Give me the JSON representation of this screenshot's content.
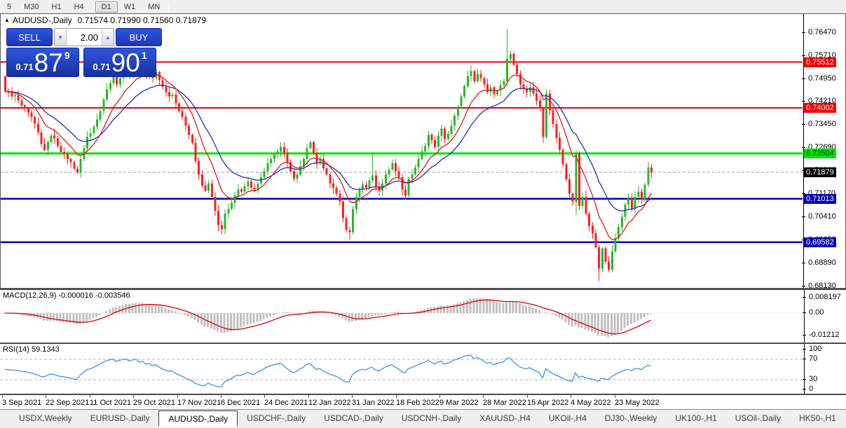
{
  "toolbar": {
    "timeframes": [
      {
        "label": "5",
        "active": false
      },
      {
        "label": "M30",
        "active": false
      },
      {
        "label": "H1",
        "active": false
      },
      {
        "label": "H4",
        "active": false
      },
      {
        "label": "D1",
        "active": true
      },
      {
        "label": "W1",
        "active": false
      },
      {
        "label": "MN",
        "active": false
      }
    ],
    "separators_after": [
      "H4",
      "MN"
    ]
  },
  "chart_header": {
    "collapse_icon": "▲",
    "symbol": "AUDUSD-,Daily",
    "ohlc": "0.71574 0.71990 0.71560 0.71879"
  },
  "trade_panel": {
    "sell_label": "SELL",
    "buy_label": "BUY",
    "volume": "2.00",
    "down_arrow": "▼",
    "up_arrow": "▲",
    "sell_price": {
      "prefix": "0.71",
      "big": "87",
      "sup": "9"
    },
    "buy_price": {
      "prefix": "0.71",
      "big": "90",
      "sup": "1"
    }
  },
  "chart_data": {
    "type": "candlestick",
    "symbol": "AUDUSD-,Daily",
    "price_axis_ticks": [
      "0.76470",
      "0.75710",
      "0.74950",
      "0.74210",
      "0.73450",
      "0.72690",
      "0.71930",
      "0.71170",
      "0.70410",
      "0.69650",
      "0.68890",
      "0.68130"
    ],
    "price_tags": [
      {
        "label": "0.75512",
        "price": 0.75512,
        "color": "red"
      },
      {
        "label": "0.74002",
        "price": 0.74002,
        "color": "red"
      },
      {
        "label": "0.72504",
        "price": 0.72504,
        "color": "green"
      },
      {
        "label": "0.71879",
        "price": 0.71879,
        "color": "black"
      },
      {
        "label": "0.71013",
        "price": 0.71013,
        "color": "blue"
      },
      {
        "label": "0.69582",
        "price": 0.69582,
        "color": "blue"
      }
    ],
    "hlines": [
      {
        "price": 0.75512,
        "color": "#ee0000",
        "width": 2,
        "dash": ""
      },
      {
        "price": 0.74002,
        "color": "#ee0000",
        "width": 2,
        "dash": ""
      },
      {
        "price": 0.72504,
        "color": "#00e400",
        "width": 3,
        "dash": ""
      },
      {
        "price": 0.71013,
        "color": "#0000bb",
        "width": 2.4,
        "dash": ""
      },
      {
        "price": 0.69582,
        "color": "#0000bb",
        "width": 2.4,
        "dash": ""
      },
      {
        "price": 0.71879,
        "color": "#999999",
        "width": 1,
        "dash": "4,3"
      }
    ],
    "closes": [
      0.7455,
      0.745,
      0.7438,
      0.7442,
      0.7425,
      0.7408,
      0.7398,
      0.7385,
      0.737,
      0.7348,
      0.732,
      0.7282,
      0.7262,
      0.7288,
      0.731,
      0.73,
      0.7275,
      0.7255,
      0.7248,
      0.7232,
      0.7222,
      0.72,
      0.7188,
      0.7232,
      0.7268,
      0.7305,
      0.7318,
      0.7338,
      0.7362,
      0.739,
      0.7428,
      0.7462,
      0.7482,
      0.7502,
      0.7478,
      0.7498,
      0.7518,
      0.7532,
      0.7512,
      0.7536,
      0.755,
      0.7522,
      0.7538,
      0.7508,
      0.7524,
      0.7498,
      0.7518,
      0.7492,
      0.747,
      0.7452,
      0.7438,
      0.7444,
      0.7415,
      0.739,
      0.7372,
      0.7342,
      0.7312,
      0.7285,
      0.7225,
      0.7182,
      0.7145,
      0.7128,
      0.7152,
      0.7108,
      0.7062,
      0.7015,
      0.7002,
      0.7052,
      0.7068,
      0.7088,
      0.7112,
      0.7132,
      0.7125,
      0.7142,
      0.7158,
      0.7138,
      0.7128,
      0.7152,
      0.7172,
      0.7192,
      0.7218,
      0.7232,
      0.7248,
      0.7258,
      0.7272,
      0.7252,
      0.7222,
      0.7192,
      0.7168,
      0.7182,
      0.7208,
      0.7232,
      0.7268,
      0.7288,
      0.7252,
      0.7218,
      0.7232,
      0.7202,
      0.7182,
      0.7152,
      0.7138,
      0.7118,
      0.7092,
      0.7038,
      0.6998,
      0.6992,
      0.7068,
      0.7108,
      0.7132,
      0.7148,
      0.7138,
      0.7162,
      0.7178,
      0.7142,
      0.7128,
      0.7152,
      0.7182,
      0.7198,
      0.7218,
      0.7192,
      0.7172,
      0.7132,
      0.7112,
      0.7168,
      0.7182,
      0.7205,
      0.7232,
      0.7258,
      0.7275,
      0.7312,
      0.7295,
      0.7272,
      0.7308,
      0.7332,
      0.7298,
      0.7315,
      0.7342,
      0.7375,
      0.7405,
      0.7438,
      0.7472,
      0.7505,
      0.7522,
      0.7488,
      0.7512,
      0.7498,
      0.7478,
      0.7452,
      0.7468,
      0.7445,
      0.7458,
      0.7475,
      0.7488,
      0.7562,
      0.7578,
      0.7542,
      0.7512,
      0.7478,
      0.7462,
      0.7452,
      0.7468,
      0.7448,
      0.7425,
      0.7398,
      0.7305,
      0.7448,
      0.7392,
      0.7348,
      0.7302,
      0.7262,
      0.7215,
      0.7165,
      0.7118,
      0.7092,
      0.7252,
      0.7078,
      0.7108,
      0.7052,
      0.7012,
      0.6988,
      0.6942,
      0.6872,
      0.6938,
      0.6895,
      0.6868,
      0.6928,
      0.6972,
      0.7008,
      0.7042,
      0.7082,
      0.7102,
      0.7068,
      0.7108,
      0.7125,
      0.7098,
      0.7148,
      0.7205,
      0.71879
    ],
    "wick_overrides": {
      "0": {
        "o": 0.7505
      },
      "40": {
        "h": 0.7556
      },
      "66": {
        "l": 0.6985
      },
      "105": {
        "l": 0.6966
      },
      "112": {
        "h": 0.7249
      },
      "153": {
        "h": 0.766
      },
      "174": {
        "l": 0.7048
      },
      "181": {
        "l": 0.683
      }
    },
    "up_color": "#2eb42e",
    "down_color": "#fe2020",
    "ma_fast_color": "#d42020",
    "ma_slow_color": "#2233ad",
    "ma_fast_period": 10,
    "ma_slow_period": 21
  },
  "macd": {
    "label": "MACD(12,26,9) -0.000016 -0.003546",
    "axis_top": "0.008197",
    "axis_zero": "0.00",
    "axis_bottom": "-0.01212",
    "fast": 12,
    "slow": 26,
    "signal": 9,
    "bar_color": "#c0c0c0",
    "signal_color": "#dd0000"
  },
  "rsi": {
    "label": "RSI(14) 59.1343",
    "period": 14,
    "axis_labels": [
      "100",
      "70",
      "30",
      "0"
    ],
    "levels": [
      70,
      30
    ],
    "line_color": "#3a95e8"
  },
  "date_axis": {
    "labels": [
      "3 Sep 2021",
      "22 Sep 2021",
      "11 Oct 2021",
      "29 Oct 2021",
      "17 Nov 2021",
      "6 Dec 2021",
      "24 Dec 2021",
      "12 Jan 2022",
      "31 Jan 2022",
      "18 Feb 2022",
      "9 Mar 2022",
      "28 Mar 2022",
      "15 Apr 2022",
      "4 May 2022",
      "23 May 2022"
    ]
  },
  "tabs": {
    "items": [
      {
        "label": "USDX,Weekly",
        "active": false
      },
      {
        "label": "EURUSD-,Daily",
        "active": false
      },
      {
        "label": "AUDUSD-,Daily",
        "active": true
      },
      {
        "label": "USDCHF-,Daily",
        "active": false
      },
      {
        "label": "USDCAD-,Daily",
        "active": false
      },
      {
        "label": "USDCNH-,Daily",
        "active": false
      },
      {
        "label": "XAUUSD-,H4",
        "active": false
      },
      {
        "label": "UKOil-,H4",
        "active": false
      },
      {
        "label": "DJ30-,Weekly",
        "active": false
      },
      {
        "label": "UK100-,H1",
        "active": false
      },
      {
        "label": "USOil-,Daily",
        "active": false
      },
      {
        "label": "HK50-,H1",
        "active": false
      }
    ],
    "nav_left": "◄",
    "nav_right": "►"
  }
}
